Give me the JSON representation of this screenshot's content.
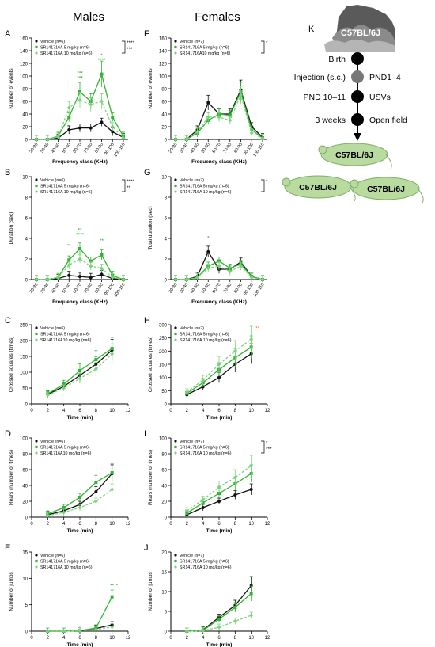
{
  "columns": {
    "males": "Males",
    "females": "Females"
  },
  "x_freq": [
    "20-30",
    "30-40",
    "40-50",
    "50-60",
    "60-70",
    "70-80",
    "80-90",
    "90-100",
    "100-110"
  ],
  "colors": {
    "vehicle": "#111111",
    "dose5": "#2fb52f",
    "dose10": "#7ad37a",
    "sig_green": "#22a822",
    "sig_orange": "#e07b00"
  },
  "chart_data": [
    {
      "panel": "A",
      "type": "line",
      "xlabel": "Frequency class (KHz)",
      "ylabel": "Number of events",
      "ylim": [
        0,
        160
      ],
      "yticks": [
        0,
        20,
        40,
        60,
        80,
        100,
        120,
        140,
        160
      ],
      "categories_ref": "x_freq",
      "legend": [
        "Vehicle (n=6)",
        "SR141716A 5 mg/kg (n=6)",
        "SR141716A 10 mg/kg (n=6)"
      ],
      "legend_sig": [
        "****",
        "***"
      ],
      "series": [
        {
          "name": "Vehicle (n=6)",
          "values": [
            0,
            0,
            2,
            15,
            18,
            18,
            27,
            12,
            3
          ]
        },
        {
          "name": "SR141716A 5 mg/kg (n=6)",
          "values": [
            0,
            0,
            5,
            35,
            75,
            60,
            103,
            35,
            5
          ]
        },
        {
          "name": "SR141716A 10 mg/kg (n=6)",
          "values": [
            0,
            0,
            4,
            50,
            62,
            55,
            60,
            20,
            2
          ]
        }
      ],
      "annotations": [
        {
          "x": 4,
          "text": "***"
        },
        {
          "x": 4,
          "text": "***"
        },
        {
          "x": 6,
          "text": "****"
        },
        {
          "x": 6,
          "text": "*"
        }
      ]
    },
    {
      "panel": "B",
      "type": "line",
      "xlabel": "Frequency class (KHz)",
      "ylabel": "Duration (sec)",
      "ylim": [
        0,
        10
      ],
      "yticks": [
        0,
        2,
        4,
        6,
        8,
        10
      ],
      "categories_ref": "x_freq",
      "legend": [
        "Vehicle (n=6)",
        "SR141716A 5 mg/kg (n=6)",
        "SR141716A 10 mg/kg (n=6)"
      ],
      "legend_sig": [
        "****",
        "**"
      ],
      "series": [
        {
          "name": "Vehicle (n=6)",
          "values": [
            0,
            0,
            0.1,
            0.4,
            0.3,
            0.2,
            0.5,
            0.1,
            0
          ]
        },
        {
          "name": "SR141716A 5 mg/kg (n=6)",
          "values": [
            0,
            0,
            0.2,
            1.9,
            3.0,
            1.8,
            2.4,
            0.4,
            0
          ]
        },
        {
          "name": "SR141716A 10 mg/kg (n=6)",
          "values": [
            0,
            0,
            0.2,
            1.4,
            2.0,
            1.3,
            1.1,
            0.2,
            0
          ]
        }
      ],
      "annotations": [
        {
          "x": 3,
          "text": "**"
        },
        {
          "x": 4,
          "text": "****"
        },
        {
          "x": 4,
          "text": "**"
        },
        {
          "x": 6,
          "text": "**"
        }
      ]
    },
    {
      "panel": "C",
      "type": "line",
      "xlabel": "Time (min)",
      "ylabel": "Crossed squares (times)",
      "ylim": [
        0,
        250
      ],
      "yticks": [
        0,
        50,
        100,
        150,
        200,
        250
      ],
      "x": [
        2,
        4,
        6,
        8,
        10
      ],
      "xticks": [
        0,
        2,
        4,
        6,
        8,
        10,
        12
      ],
      "legend": [
        "Vehicle (n=6)",
        "SR141716A 5 mg/kg (n=6)",
        "SR141716A10 mg/kg (n=6)"
      ],
      "series": [
        {
          "name": "Vehicle (n=6)",
          "values": [
            30,
            55,
            90,
            125,
            170
          ]
        },
        {
          "name": "SR141716A 5 mg/kg (n=6)",
          "values": [
            32,
            62,
            105,
            140,
            175
          ]
        },
        {
          "name": "SR141716A10 mg/kg (n=6)",
          "values": [
            28,
            50,
            80,
            110,
            158
          ]
        }
      ]
    },
    {
      "panel": "D",
      "type": "line",
      "xlabel": "Time (min)",
      "ylabel": "Rears (number of times)",
      "ylim": [
        0,
        100
      ],
      "yticks": [
        0,
        20,
        40,
        60,
        80,
        100
      ],
      "x": [
        2,
        4,
        6,
        8,
        10
      ],
      "xticks": [
        0,
        2,
        4,
        6,
        8,
        10,
        12
      ],
      "legend": [
        "Vehicle (n=6)",
        "SR141716A 5 mg/kg (n=6)",
        "SR141716A10 mg/kg (n=6)"
      ],
      "series": [
        {
          "name": "Vehicle (n=6)",
          "values": [
            3,
            8,
            16,
            32,
            55
          ]
        },
        {
          "name": "SR141716A 5 mg/kg (n=6)",
          "values": [
            4,
            12,
            25,
            44,
            56
          ]
        },
        {
          "name": "SR141716A10 mg/kg (n=6)",
          "values": [
            2,
            6,
            12,
            20,
            35
          ]
        }
      ]
    },
    {
      "panel": "E",
      "type": "line",
      "xlabel": "Time (min)",
      "ylabel": "Number of jumps",
      "ylim": [
        0,
        15
      ],
      "yticks": [
        0,
        5,
        10,
        15
      ],
      "x": [
        2,
        4,
        6,
        8,
        10
      ],
      "xticks": [
        0,
        2,
        4,
        6,
        8,
        10,
        12
      ],
      "legend": [
        "Vehicle (n=6)",
        "SR141716A 5 mg/kg (n=6)",
        "SR141716A 10 mg/kg (n=6)"
      ],
      "series": [
        {
          "name": "Vehicle (n=6)",
          "values": [
            0,
            0,
            0.1,
            0.5,
            1.2
          ]
        },
        {
          "name": "SR141716A 5 mg/kg (n=6)",
          "values": [
            0,
            0,
            0.1,
            0.6,
            6.5
          ]
        },
        {
          "name": "SR141716A 10 mg/kg (n=6)",
          "values": [
            0,
            0,
            0.1,
            0.3,
            0.8
          ]
        }
      ],
      "annotations": [
        {
          "x": 10,
          "text": "**"
        },
        {
          "x": 10.6,
          "text": "*"
        }
      ]
    },
    {
      "panel": "F",
      "type": "line",
      "xlabel": "Frequency class (KHz)",
      "ylabel": "Number of events",
      "ylim": [
        0,
        160
      ],
      "yticks": [
        0,
        20,
        40,
        60,
        80,
        100,
        120,
        140,
        160
      ],
      "categories_ref": "x_freq",
      "legend": [
        "Vehicle (n=7)",
        "SR141716A 5 mg/kg (n=6)",
        "SR141716A10 mg/kg (n=6)"
      ],
      "legend_sig": [
        "*"
      ],
      "series": [
        {
          "name": "Vehicle (n=7)",
          "values": [
            0,
            0,
            15,
            58,
            40,
            40,
            78,
            20,
            3
          ]
        },
        {
          "name": "SR141716A 5 mg/kg (n=6)",
          "values": [
            0,
            0,
            10,
            30,
            40,
            38,
            75,
            15,
            2
          ]
        },
        {
          "name": "SR141716A10 mg/kg (n=6)",
          "values": [
            0,
            0,
            12,
            35,
            35,
            30,
            70,
            10,
            2
          ]
        }
      ]
    },
    {
      "panel": "G",
      "type": "line",
      "xlabel": "Frequency class (KHz)",
      "ylabel": "Total duration (sec)",
      "ylim": [
        0,
        10
      ],
      "yticks": [
        0,
        2,
        4,
        6,
        8,
        10
      ],
      "categories_ref": "x_freq",
      "legend": [
        "Vehicle (n=7)",
        "SR141716A 5 mg/kg (n=6)",
        "SR141716A 10 mg/kg (n=6)"
      ],
      "legend_sig": [
        "*"
      ],
      "series": [
        {
          "name": "Vehicle (n=7)",
          "values": [
            0,
            0,
            0.3,
            2.7,
            1.0,
            1.0,
            1.7,
            0.3,
            0
          ]
        },
        {
          "name": "SR141716A 5 mg/kg (n=6)",
          "values": [
            0,
            0,
            0.2,
            1.3,
            1.8,
            1.1,
            1.5,
            0.3,
            0
          ]
        },
        {
          "name": "SR141716A 10 mg/kg (n=6)",
          "values": [
            0,
            0,
            0.2,
            1.1,
            1.3,
            0.8,
            1.3,
            0.2,
            0
          ]
        }
      ],
      "annotations": [
        {
          "x": 3,
          "text": "*"
        }
      ]
    },
    {
      "panel": "H",
      "type": "line",
      "xlabel": "Time (min)",
      "ylabel": "Crossed squares (times)",
      "ylim": [
        0,
        300
      ],
      "yticks": [
        0,
        50,
        100,
        150,
        200,
        250,
        300
      ],
      "x": [
        2,
        4,
        6,
        8,
        10
      ],
      "xticks": [
        0,
        2,
        4,
        6,
        8,
        10,
        12
      ],
      "legend": [
        "Vehicle (n=7)",
        "SR141716A 5 mg/kg (n=6)",
        "SR141716A 10 mg/kg (n=6)"
      ],
      "series": [
        {
          "name": "Vehicle (n=7)",
          "values": [
            35,
            65,
            100,
            150,
            190
          ]
        },
        {
          "name": "SR141716A 5 mg/kg (n=6)",
          "values": [
            40,
            80,
            130,
            175,
            215
          ]
        },
        {
          "name": "SR141716A 10 mg/kg (n=6)",
          "values": [
            45,
            90,
            150,
            200,
            245
          ]
        }
      ],
      "annotations": [
        {
          "x": 10.8,
          "text": "**"
        }
      ]
    },
    {
      "panel": "I",
      "type": "line",
      "xlabel": "Time (min)",
      "ylabel": "Rears (number of times)",
      "ylim": [
        0,
        100
      ],
      "yticks": [
        0,
        20,
        40,
        60,
        80,
        100
      ],
      "x": [
        2,
        4,
        6,
        8,
        10
      ],
      "xticks": [
        0,
        2,
        4,
        6,
        8,
        10,
        12
      ],
      "legend": [
        "Vehicle (n=7)",
        "SR141716A 5 mg/kg (n=6)",
        "SR141716A 10 mg/kg (n=6)"
      ],
      "legend_sig": [
        "*",
        "***"
      ],
      "series": [
        {
          "name": "Vehicle (n=7)",
          "values": [
            3,
            12,
            20,
            28,
            35
          ]
        },
        {
          "name": "SR141716A 5 mg/kg (n=6)",
          "values": [
            5,
            18,
            30,
            42,
            55
          ]
        },
        {
          "name": "SR141716A 10 mg/kg (n=6)",
          "values": [
            8,
            22,
            38,
            50,
            65
          ]
        }
      ]
    },
    {
      "panel": "J",
      "type": "line",
      "xlabel": "Time (min)",
      "ylabel": "Number of jumps",
      "ylim": [
        0,
        20
      ],
      "yticks": [
        0,
        5,
        10,
        15,
        20
      ],
      "x": [
        2,
        4,
        6,
        8,
        10
      ],
      "xticks": [
        0,
        2,
        4,
        6,
        8,
        10,
        12
      ],
      "legend": [
        "Vehicle (n=7)",
        "SR141716A 5 mg/kg (n=6)",
        "SR141716A 10 mg/kg (n=6)"
      ],
      "series": [
        {
          "name": "Vehicle (n=7)",
          "values": [
            0,
            0.3,
            3.5,
            6.5,
            11.5
          ]
        },
        {
          "name": "SR141716A 5 mg/kg (n=6)",
          "values": [
            0,
            0.2,
            3.0,
            6.0,
            9.5
          ]
        },
        {
          "name": "SR141716A 10 mg/kg (n=6)",
          "values": [
            0,
            0.1,
            1.0,
            2.5,
            4.0
          ]
        }
      ]
    }
  ],
  "diagram": {
    "panel": "K",
    "mouse_label": "C57BL/6J",
    "timeline": [
      {
        "left": "Birth",
        "right": ""
      },
      {
        "left": "Injection (s.c.)",
        "right": "PND1–4"
      },
      {
        "left": "PND 10–11",
        "right": "USVs"
      },
      {
        "left": "3 weeks",
        "right": "Open field"
      }
    ],
    "pups": [
      "C57BL/6J",
      "C57BL/6J",
      "C57BL/6J"
    ]
  }
}
